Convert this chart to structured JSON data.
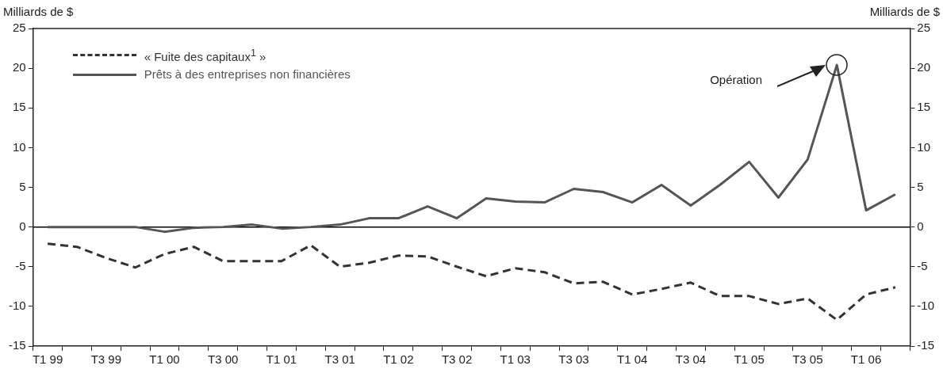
{
  "chart_data": {
    "type": "line",
    "ylabel": "Milliards de $",
    "y2label": "Milliards de $",
    "categories": [
      "T1 99",
      null,
      "T3 99",
      null,
      "T1 00",
      null,
      "T3 00",
      null,
      "T1 01",
      null,
      "T3 01",
      null,
      "T1 02",
      null,
      "T3 02",
      null,
      "T1 03",
      null,
      "T3 03",
      null,
      "T1 04",
      null,
      "T3 04",
      null,
      "T1 05",
      null,
      "T3 05",
      null,
      "T1 06",
      null
    ],
    "series": [
      {
        "name": "« Fuite des capitaux$^{1}$ »",
        "color": "#333333",
        "line_style": "dashed",
        "values": [
          -2.1,
          -2.5,
          -3.9,
          -5.1,
          -3.4,
          -2.5,
          -4.3,
          -4.3,
          -4.3,
          -2.3,
          -5.0,
          -4.5,
          -3.6,
          -3.7,
          -5.0,
          -6.2,
          -5.2,
          -5.7,
          -7.1,
          -6.9,
          -8.5,
          -7.8,
          -7.0,
          -8.7,
          -8.7,
          -9.7,
          -9.0,
          -11.7,
          -8.5,
          -7.6
        ]
      },
      {
        "name": "Prêts à des entreprises non financières",
        "color": "#555555",
        "line_style": "solid",
        "values": [
          0,
          0,
          0,
          0,
          -0.6,
          -0.1,
          0,
          0.3,
          -0.2,
          0,
          0.3,
          1.1,
          1.1,
          2.6,
          1.1,
          3.6,
          3.2,
          3.1,
          4.8,
          4.4,
          3.1,
          5.3,
          2.7,
          5.3,
          8.2,
          3.7,
          8.5,
          20.4,
          2.1,
          4.1
        ]
      }
    ],
    "ylim": [
      -15,
      25
    ],
    "yticks": [
      -15,
      -10,
      -5,
      0,
      5,
      10,
      15,
      20,
      25
    ],
    "y2lim": [
      -15,
      25
    ],
    "y2ticks": [
      -15,
      -10,
      -5,
      0,
      5,
      10,
      15,
      20,
      25
    ],
    "ref_lines": [
      {
        "axis": "y",
        "value": 0,
        "color": "#000000"
      }
    ],
    "annotations": [
      "Opération"
    ],
    "legend": "top left",
    "grid": false,
    "marker": "none"
  }
}
